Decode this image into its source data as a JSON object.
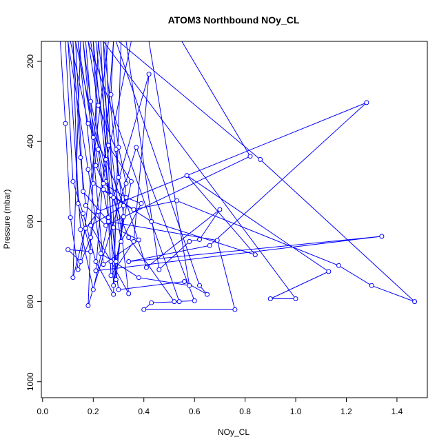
{
  "chart_data": {
    "type": "line",
    "title": "ATOM3 Northbound NOy_CL",
    "xlabel": "NOy_CL",
    "ylabel": "Pressure (mbar)",
    "xlim": [
      -0.005,
      1.52
    ],
    "ylim": [
      150,
      1040
    ],
    "y_reversed": true,
    "x_ticks": [
      0.0,
      0.2,
      0.4,
      0.6,
      0.8,
      1.0,
      1.2,
      1.4
    ],
    "x_tick_labels": [
      "0.0",
      "0.2",
      "0.4",
      "0.6",
      "0.8",
      "1.0",
      "1.2",
      "1.4"
    ],
    "y_ticks": [
      200,
      400,
      600,
      800,
      1000
    ],
    "y_tick_labels": [
      "200",
      "400",
      "600",
      "800",
      "1000"
    ],
    "grid": false,
    "series": [
      {
        "color": "#0000ff",
        "marker": "open-circle",
        "points": [
          [
            0.07,
            150
          ],
          [
            0.09,
            355
          ],
          [
            0.11,
            590
          ],
          [
            0.14,
            720
          ],
          [
            0.19,
            640
          ],
          [
            0.35,
            150
          ],
          [
            0.12,
            150
          ],
          [
            0.15,
            440
          ],
          [
            0.17,
            560
          ],
          [
            0.25,
            610
          ],
          [
            0.82,
            437
          ],
          [
            0.55,
            150
          ],
          [
            0.1,
            150
          ],
          [
            0.18,
            470
          ],
          [
            0.23,
            680
          ],
          [
            0.38,
            740
          ],
          [
            0.58,
            760
          ],
          [
            0.42,
            150
          ],
          [
            0.14,
            150
          ],
          [
            0.2,
            390
          ],
          [
            0.26,
            590
          ],
          [
            0.3,
            770
          ],
          [
            0.56,
            750
          ],
          [
            0.65,
            782
          ],
          [
            0.62,
            760
          ],
          [
            0.29,
            150
          ],
          [
            0.09,
            150
          ],
          [
            0.12,
            500
          ],
          [
            0.16,
            580
          ],
          [
            0.21,
            700
          ],
          [
            0.28,
            782
          ],
          [
            0.31,
            150
          ],
          [
            0.2,
            150
          ],
          [
            0.22,
            420
          ],
          [
            0.24,
            520
          ],
          [
            0.36,
            570
          ],
          [
            0.53,
            548
          ],
          [
            1.17,
            710
          ],
          [
            1.3,
            760
          ],
          [
            1.47,
            800
          ],
          [
            0.86,
            445
          ],
          [
            0.3,
            150
          ],
          [
            0.13,
            150
          ],
          [
            0.25,
            500
          ],
          [
            0.34,
            640
          ],
          [
            0.52,
            800
          ],
          [
            0.6,
            798
          ],
          [
            0.37,
            415
          ],
          [
            0.18,
            810
          ],
          [
            0.22,
            150
          ],
          [
            0.16,
            150
          ],
          [
            0.19,
            300
          ],
          [
            0.27,
            535
          ],
          [
            0.43,
            600
          ],
          [
            0.84,
            683
          ],
          [
            0.57,
            485
          ],
          [
            1.13,
            725
          ],
          [
            0.9,
            793
          ],
          [
            1.0,
            793
          ],
          [
            0.24,
            150
          ],
          [
            0.3,
            490
          ],
          [
            0.41,
            715
          ],
          [
            0.7,
            570
          ],
          [
            0.62,
            645
          ],
          [
            0.58,
            650
          ],
          [
            0.46,
            720
          ],
          [
            0.33,
            150
          ],
          [
            0.1,
            150
          ],
          [
            0.15,
            620
          ],
          [
            0.2,
            770
          ],
          [
            0.26,
            600
          ],
          [
            0.69,
            647
          ],
          [
            0.76,
            820
          ],
          [
            0.4,
            820
          ],
          [
            0.43,
            803
          ],
          [
            0.54,
            800
          ],
          [
            0.18,
            150
          ],
          [
            0.15,
            150
          ],
          [
            0.12,
            740
          ],
          [
            0.17,
            617
          ],
          [
            0.22,
            575
          ],
          [
            1.28,
            303
          ],
          [
            0.66,
            660
          ],
          [
            0.34,
            700
          ],
          [
            1.34,
            637
          ],
          [
            0.21,
            723
          ],
          [
            0.28,
            150
          ],
          [
            0.27,
            283
          ],
          [
            0.3,
            415
          ],
          [
            0.33,
            505
          ],
          [
            0.29,
            745
          ],
          [
            0.25,
            150
          ],
          [
            0.14,
            150
          ],
          [
            0.2,
            505
          ],
          [
            0.28,
            540
          ],
          [
            0.42,
            232
          ],
          [
            0.36,
            650
          ],
          [
            0.27,
            735
          ],
          [
            0.23,
            150
          ],
          [
            0.11,
            150
          ],
          [
            0.18,
            355
          ],
          [
            0.25,
            445
          ],
          [
            0.32,
            560
          ],
          [
            0.19,
            610
          ],
          [
            0.27,
            700
          ],
          [
            0.34,
            780
          ],
          [
            0.22,
            150
          ],
          [
            0.17,
            150
          ],
          [
            0.21,
            460
          ],
          [
            0.24,
            505
          ],
          [
            0.33,
            540
          ],
          [
            0.39,
            555
          ],
          [
            0.31,
            650
          ],
          [
            0.19,
            150
          ],
          [
            0.13,
            150
          ],
          [
            0.16,
            525
          ],
          [
            0.28,
            615
          ],
          [
            0.38,
            646
          ],
          [
            0.24,
            707
          ],
          [
            0.16,
            150
          ],
          [
            0.21,
            150
          ],
          [
            0.26,
            410
          ],
          [
            0.35,
            500
          ],
          [
            0.29,
            700
          ],
          [
            0.2,
            150
          ],
          [
            0.12,
            150
          ],
          [
            0.14,
            555
          ],
          [
            0.19,
            675
          ],
          [
            0.1,
            670
          ],
          [
            0.15,
            700
          ],
          [
            0.26,
            150
          ],
          [
            0.18,
            150
          ],
          [
            0.22,
            310
          ],
          [
            0.29,
            420
          ],
          [
            0.32,
            588
          ],
          [
            0.28,
            760
          ],
          [
            0.24,
            150
          ]
        ]
      }
    ]
  }
}
